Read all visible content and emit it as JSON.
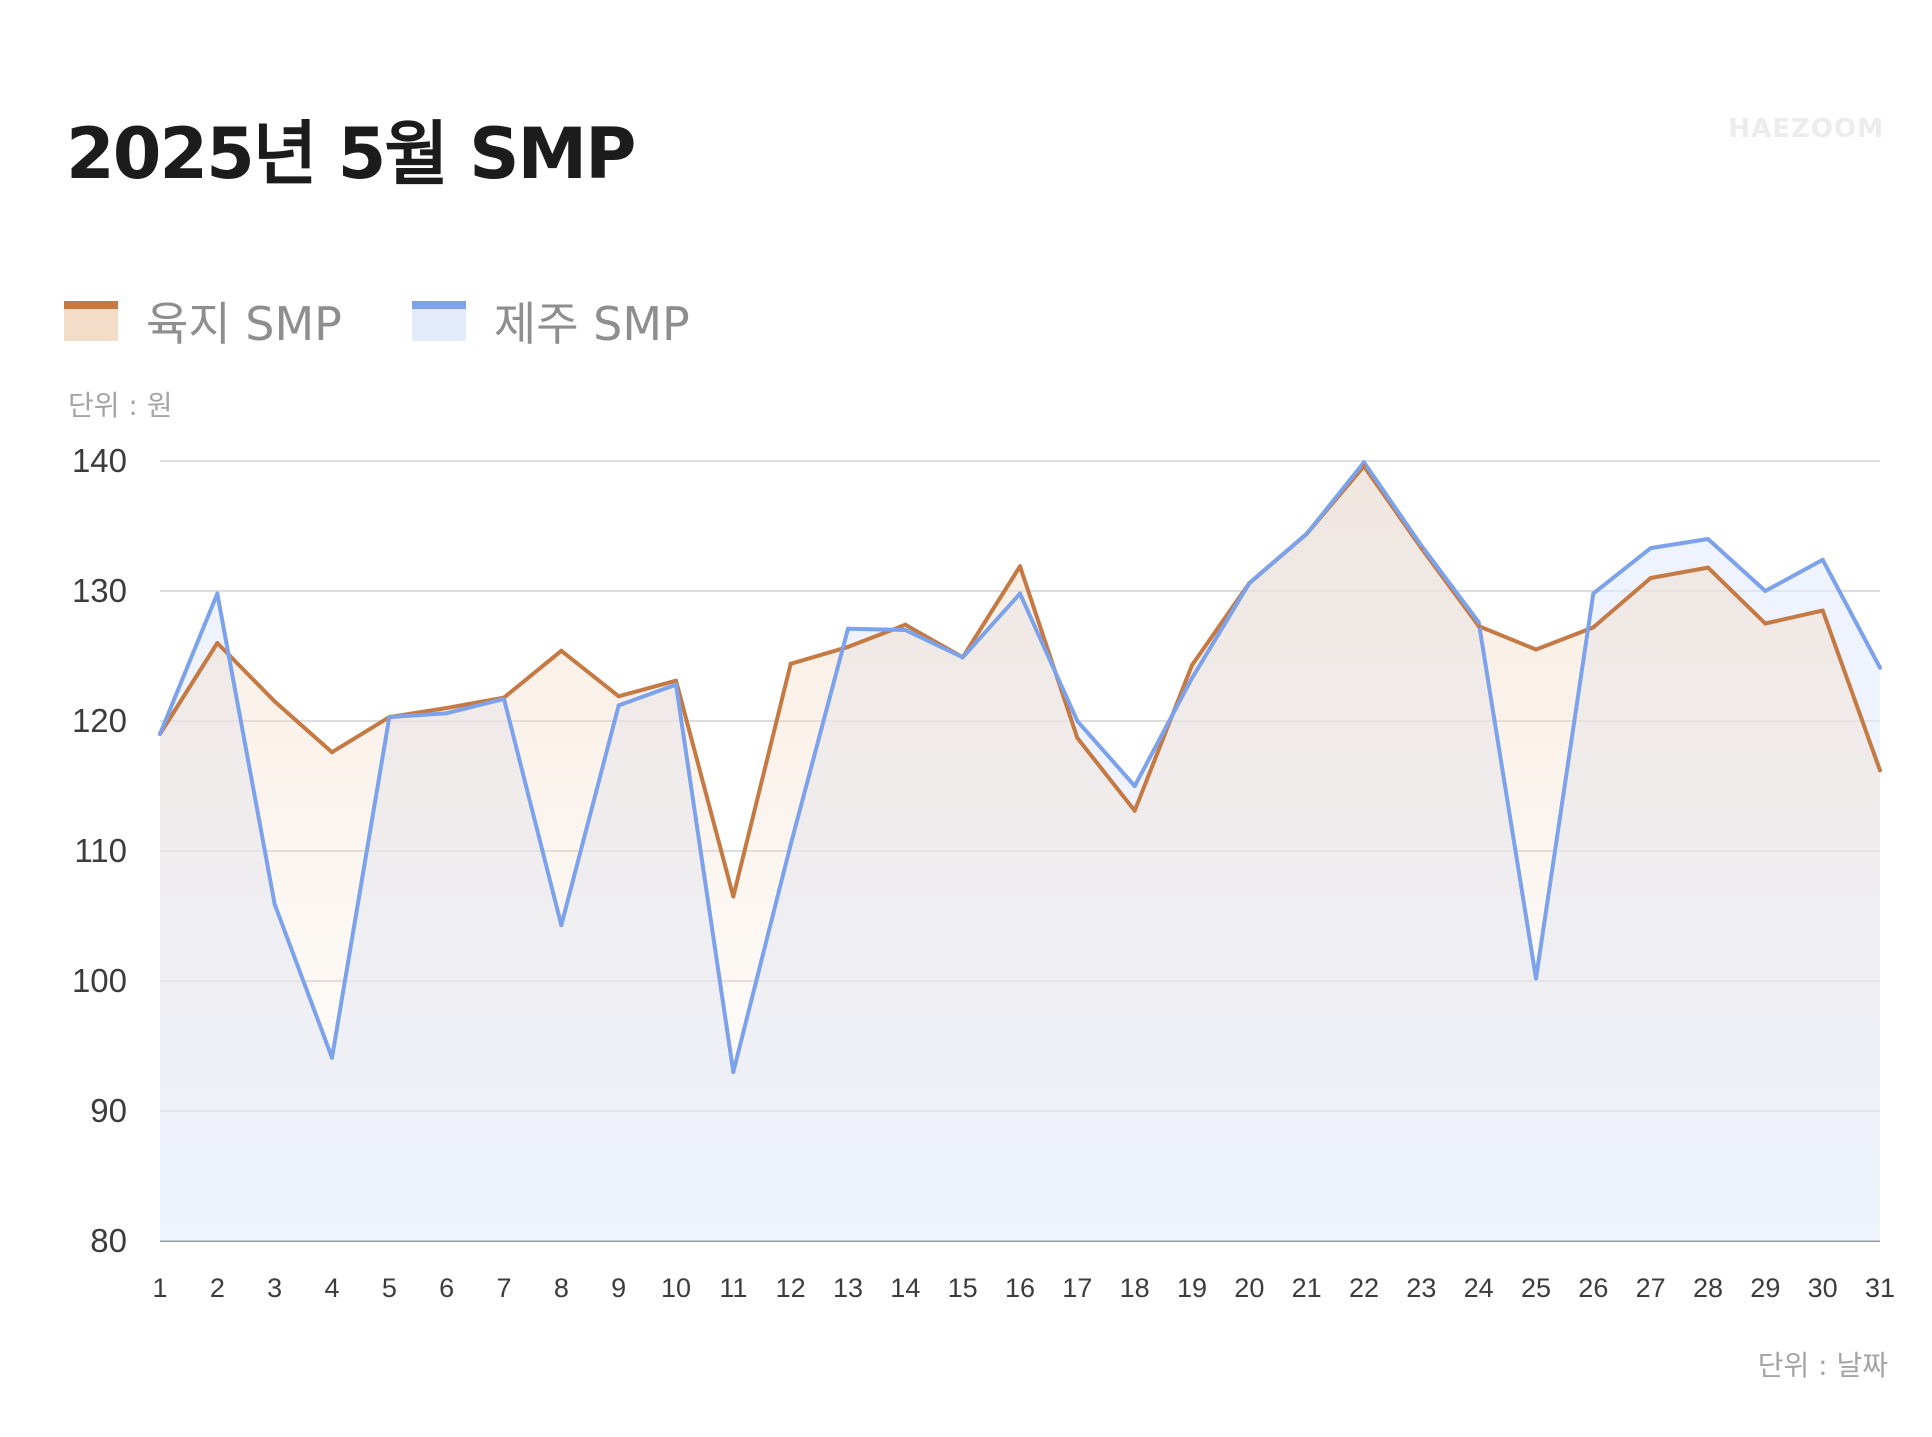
{
  "title": "2025년 5월 SMP",
  "brand": "HAEZOOM",
  "colors": {
    "land_line": "#c57a44",
    "land_fill": "#f3dcc8",
    "jeju_line": "#7da2ec",
    "jeju_fill": "#e3ebfb",
    "grid": "#d2d2d2"
  },
  "chart_data": {
    "type": "area",
    "title": "2025년 5월 SMP",
    "ylabel": "단위 : 원",
    "xlabel": "단위 : 날짜",
    "ylim": [
      80,
      140
    ],
    "yticks": [
      80,
      90,
      100,
      110,
      120,
      130,
      140
    ],
    "grid": true,
    "legend_position": "top-left",
    "x": [
      1,
      2,
      3,
      4,
      5,
      6,
      7,
      8,
      9,
      10,
      11,
      12,
      13,
      14,
      15,
      16,
      17,
      18,
      19,
      20,
      21,
      22,
      23,
      24,
      25,
      26,
      27,
      28,
      29,
      30,
      31
    ],
    "series": [
      {
        "name": "육지 SMP",
        "values": [
          119.0,
          126.0,
          121.5,
          117.6,
          120.3,
          121.0,
          121.8,
          125.4,
          121.9,
          123.1,
          106.5,
          124.4,
          125.7,
          127.4,
          124.9,
          131.9,
          118.7,
          113.1,
          124.3,
          130.6,
          134.4,
          139.6,
          133.3,
          127.3,
          125.5,
          127.2,
          131.0,
          131.8,
          127.5,
          128.5,
          116.2
        ]
      },
      {
        "name": "제주 SMP",
        "values": [
          119.0,
          129.8,
          105.9,
          94.1,
          120.3,
          120.6,
          121.7,
          104.3,
          121.2,
          122.8,
          93.0,
          110.5,
          127.1,
          127.0,
          124.9,
          129.8,
          120.0,
          115.0,
          123.3,
          130.6,
          134.4,
          139.9,
          133.5,
          127.6,
          100.2,
          129.8,
          133.3,
          134.0,
          130.0,
          132.4,
          124.1
        ]
      }
    ]
  }
}
